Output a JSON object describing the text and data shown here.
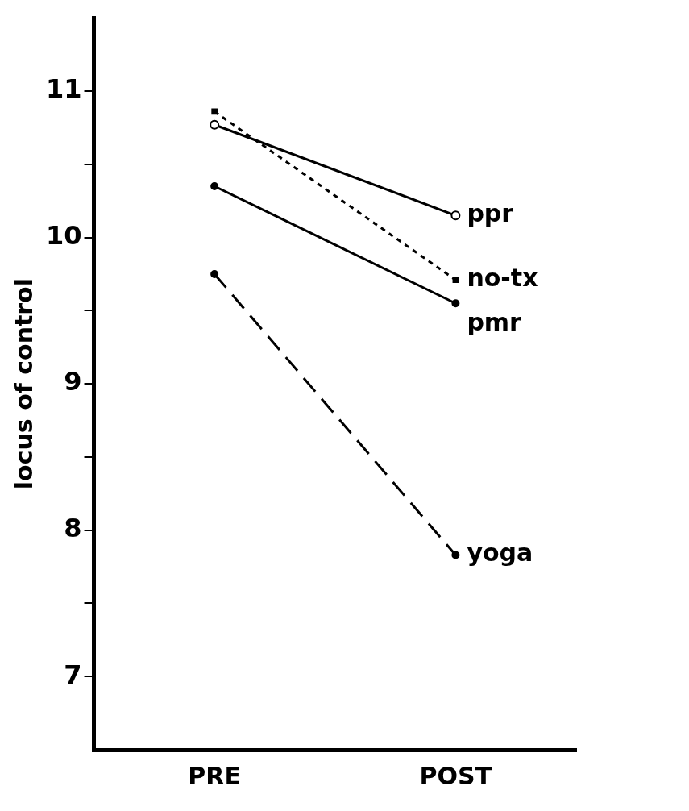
{
  "chart_data": {
    "type": "line",
    "ylabel": "locus of control",
    "categories": [
      "PRE",
      "POST"
    ],
    "series": [
      {
        "name": "ppr",
        "color": "#000000",
        "values": [
          10.77,
          10.15
        ],
        "marker": "circle",
        "line_style": "solid"
      },
      {
        "name": "no-tx",
        "color": "#000000",
        "values": [
          10.86,
          9.71
        ],
        "marker": "square",
        "line_style": "dotted"
      },
      {
        "name": "pmr",
        "color": "#000000",
        "values": [
          10.35,
          9.55
        ],
        "marker": "circle",
        "line_style": "solid"
      },
      {
        "name": "yoga",
        "color": "#000000",
        "values": [
          9.75,
          7.83
        ],
        "marker": "circle",
        "line_style": "dashed"
      }
    ],
    "ylim": [
      6.5,
      11.5
    ],
    "yticks": [
      7,
      {
        "value": 7.5,
        "label": null
      },
      8,
      {
        "value": 8.5,
        "label": null
      },
      9,
      {
        "value": 9.5,
        "label": null
      },
      10,
      {
        "value": 10.5,
        "label": null
      },
      11
    ],
    "grid": false,
    "legend": false
  }
}
